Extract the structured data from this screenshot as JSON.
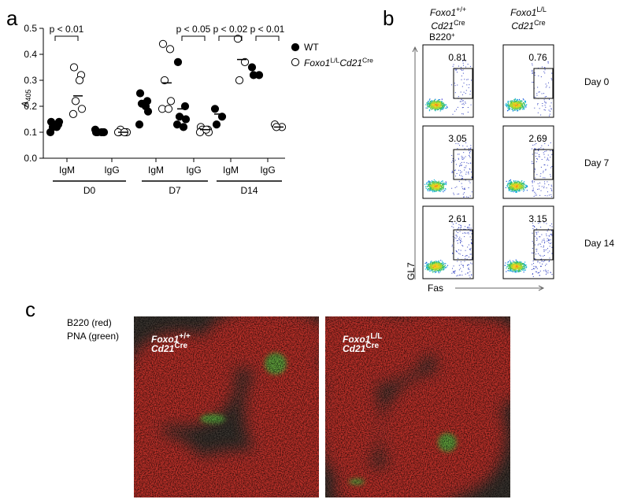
{
  "panel_labels": [
    "a",
    "b",
    "c"
  ],
  "chart_data": {
    "type": "dot",
    "ylabel": {
      "main": "A",
      "sub": "405"
    },
    "ylim": [
      0,
      0.5
    ],
    "yticks": [
      {
        "value": 0,
        "label": "0.0"
      },
      {
        "value": 0.1,
        "label": "0.1"
      },
      {
        "value": 0.2,
        "label": "0.2"
      },
      {
        "value": 0.3,
        "label": "0.3"
      },
      {
        "value": 0.4,
        "label": "0.4"
      },
      {
        "value": 0.5,
        "label": "0.5"
      }
    ],
    "categories": [
      "IgM",
      "IgG",
      "IgM",
      "IgG",
      "IgM",
      "IgG"
    ],
    "groups": [
      {
        "label": "D0",
        "categories": [
          0,
          1
        ]
      },
      {
        "label": "D7",
        "categories": [
          2,
          3
        ]
      },
      {
        "label": "D14",
        "categories": [
          4,
          5
        ]
      }
    ],
    "series": [
      {
        "name": "WT",
        "fill": "#000",
        "values": [
          [
            0.14,
            0.13,
            0.12,
            0.14,
            0.1,
            0.12
          ],
          [
            0.1,
            0.1,
            0.1,
            0.1,
            0.11,
            0.1
          ],
          [
            0.25,
            0.22,
            0.21,
            0.18,
            0.13,
            0.2
          ],
          [
            0.37,
            0.2,
            0.16,
            0.15,
            0.13,
            0.12
          ],
          [
            0.19,
            0.16,
            0.13
          ],
          [
            0.35,
            0.32,
            0.32
          ]
        ],
        "means": [
          0.13,
          0.1,
          0.21,
          0.19,
          0.17,
          0.32
        ]
      },
      {
        "name_parts": [
          "Foxo1",
          "L/L",
          "Cd21",
          "Cre"
        ],
        "fill": "#fff",
        "values": [
          [
            0.35,
            0.32,
            0.22,
            0.19,
            0.17,
            0.3
          ],
          [
            0.1,
            0.1,
            0.11,
            0.1,
            0.1,
            0.1
          ],
          [
            0.44,
            0.42,
            0.3,
            0.22,
            0.19,
            0.19
          ],
          [
            0.12,
            0.11,
            0.11,
            0.1,
            0.1,
            0.11
          ],
          [
            0.46,
            0.37,
            0.3
          ],
          [
            0.13,
            0.12,
            0.12
          ]
        ],
        "means": [
          0.24,
          0.1,
          0.29,
          0.11,
          0.38,
          0.12
        ]
      }
    ],
    "annotations": [
      {
        "text": "p < 0.01",
        "category": 0
      },
      {
        "text": "p < 0.05",
        "category": 3
      },
      {
        "text": "p < 0.02",
        "category": 4
      },
      {
        "text": "p < 0.01",
        "category": 5
      }
    ]
  },
  "flow": {
    "columns": [
      [
        "Foxo1",
        "+/+",
        "Cd21",
        "Cre"
      ],
      [
        "Foxo1",
        "L/L",
        "Cd21",
        "Cre"
      ]
    ],
    "gate_label": [
      "B220",
      "+"
    ],
    "rows": [
      "Day 0",
      "Day 7",
      "Day 14"
    ],
    "percentages": [
      [
        0.81,
        0.76
      ],
      [
        3.05,
        2.69
      ],
      [
        2.61,
        3.15
      ]
    ],
    "ylabel": "GL7",
    "xlabel": "Fas"
  },
  "histology": {
    "legend": [
      "B220 (red)",
      "PNA (green)"
    ],
    "images": [
      [
        "Foxo1",
        "+/+",
        "Cd21",
        "Cre"
      ],
      [
        "Foxo1",
        "L/L",
        "Cd21",
        "Cre"
      ]
    ]
  }
}
